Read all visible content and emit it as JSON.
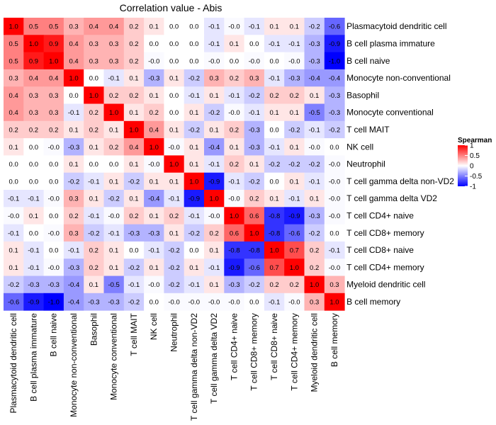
{
  "chart_data": {
    "type": "heatmap",
    "title": "Correlation value - Abis",
    "legend": {
      "title": "Spearman",
      "placement": "right",
      "ticks": [
        1,
        0.5,
        0,
        -0.5,
        -1
      ],
      "tick_labels": [
        "1",
        "0.5",
        "0",
        "-0.5",
        "-1"
      ],
      "colors": {
        "high": "#ff0000",
        "mid": "#ffffff",
        "low": "#0000ff"
      }
    },
    "labels": [
      "Plasmacytoid dendritic cell",
      "B cell plasma immature",
      "B cell naive",
      "Monocyte non-conventional",
      "Basophil",
      "Monocyte conventional",
      "T cell MAIT",
      "NK cell",
      "Neutrophil",
      "T cell gamma delta non-VD2",
      "T cell gamma delta VD2",
      "T cell CD4+ naive",
      "T cell CD8+ memory",
      "T cell CD8+ naive",
      "T cell CD4+ memory",
      "Myeloid dendritic cell",
      "B cell memory"
    ],
    "cell_labels": [
      [
        "1.0",
        "0.5",
        "0.5",
        "0.3",
        "0.4",
        "0.4",
        "0.2",
        "0.1",
        "0.0",
        "0.0",
        "-0.1",
        "-0.0",
        "-0.1",
        "0.1",
        "0.1",
        "-0.2",
        "-0.6"
      ],
      [
        "0.5",
        "1.0",
        "0.9",
        "0.4",
        "0.3",
        "0.3",
        "0.2",
        "0.0",
        "0.0",
        "0.0",
        "-0.1",
        "0.1",
        "0.0",
        "-0.1",
        "-0.1",
        "-0.3",
        "-0.9"
      ],
      [
        "0.5",
        "0.9",
        "1.0",
        "0.4",
        "0.3",
        "0.3",
        "0.2",
        "-0.0",
        "0.0",
        "0.0",
        "-0.0",
        "0.0",
        "-0.0",
        "0.0",
        "-0.0",
        "-0.3",
        "-1.0"
      ],
      [
        "0.3",
        "0.4",
        "0.4",
        "1.0",
        "0.0",
        "-0.1",
        "0.1",
        "-0.3",
        "0.1",
        "-0.2",
        "0.3",
        "0.2",
        "0.3",
        "-0.1",
        "-0.3",
        "-0.4",
        "-0.4"
      ],
      [
        "0.4",
        "0.3",
        "0.3",
        "0.0",
        "1.0",
        "0.2",
        "0.2",
        "0.1",
        "0.0",
        "-0.1",
        "0.1",
        "-0.1",
        "-0.2",
        "0.2",
        "0.2",
        "0.1",
        "-0.3"
      ],
      [
        "0.4",
        "0.3",
        "0.3",
        "-0.1",
        "0.2",
        "1.0",
        "0.1",
        "0.2",
        "0.0",
        "0.1",
        "-0.2",
        "-0.0",
        "-0.1",
        "0.1",
        "0.1",
        "-0.5",
        "-0.3"
      ],
      [
        "0.2",
        "0.2",
        "0.2",
        "0.1",
        "0.2",
        "0.1",
        "1.0",
        "0.4",
        "0.1",
        "-0.2",
        "0.1",
        "0.2",
        "-0.3",
        "0.0",
        "-0.2",
        "-0.1",
        "-0.2"
      ],
      [
        "0.1",
        "0.0",
        "-0.0",
        "-0.3",
        "0.1",
        "0.2",
        "0.4",
        "1.0",
        "-0.0",
        "0.1",
        "-0.4",
        "0.1",
        "-0.3",
        "-0.1",
        "0.1",
        "-0.0",
        "0.0"
      ],
      [
        "0.0",
        "0.0",
        "0.0",
        "0.1",
        "0.0",
        "0.0",
        "0.1",
        "-0.0",
        "1.0",
        "0.1",
        "-0.1",
        "0.2",
        "0.1",
        "-0.2",
        "-0.2",
        "-0.2",
        "-0.0"
      ],
      [
        "0.0",
        "0.0",
        "0.0",
        "-0.2",
        "-0.1",
        "0.1",
        "-0.2",
        "0.1",
        "0.1",
        "1.0",
        "-0.9",
        "-0.1",
        "-0.2",
        "0.0",
        "0.1",
        "-0.1",
        "-0.0"
      ],
      [
        "-0.1",
        "-0.1",
        "-0.0",
        "0.3",
        "0.1",
        "-0.2",
        "0.1",
        "-0.4",
        "-0.1",
        "-0.9",
        "1.0",
        "-0.0",
        "0.2",
        "0.1",
        "-0.1",
        "0.1",
        "-0.0"
      ],
      [
        "-0.0",
        "0.1",
        "0.0",
        "0.2",
        "-0.1",
        "-0.0",
        "0.2",
        "0.1",
        "0.2",
        "-0.1",
        "-0.0",
        "1.0",
        "0.6",
        "-0.8",
        "-0.9",
        "-0.3",
        "-0.0"
      ],
      [
        "-0.1",
        "0.0",
        "-0.0",
        "0.3",
        "-0.2",
        "-0.1",
        "-0.3",
        "-0.3",
        "0.1",
        "-0.2",
        "0.2",
        "0.6",
        "1.0",
        "-0.8",
        "-0.6",
        "-0.2",
        "0.0"
      ],
      [
        "0.1",
        "-0.1",
        "0.0",
        "-0.1",
        "0.2",
        "0.1",
        "0.0",
        "-0.1",
        "-0.2",
        "0.0",
        "0.1",
        "-0.8",
        "-0.8",
        "1.0",
        "0.7",
        "0.2",
        "-0.1"
      ],
      [
        "0.1",
        "-0.1",
        "-0.0",
        "-0.3",
        "0.2",
        "0.1",
        "-0.2",
        "0.1",
        "-0.2",
        "0.1",
        "-0.1",
        "-0.9",
        "-0.6",
        "0.7",
        "1.0",
        "0.2",
        "-0.0"
      ],
      [
        "-0.2",
        "-0.3",
        "-0.3",
        "-0.4",
        "0.1",
        "-0.5",
        "-0.1",
        "-0.0",
        "-0.2",
        "-0.1",
        "0.1",
        "-0.3",
        "-0.2",
        "0.2",
        "0.2",
        "1.0",
        "0.3"
      ],
      [
        "-0.6",
        "-0.9",
        "-1.0",
        "-0.4",
        "-0.3",
        "-0.3",
        "-0.2",
        "0.0",
        "-0.0",
        "-0.0",
        "-0.0",
        "-0.0",
        "0.0",
        "-0.1",
        "-0.0",
        "0.3",
        "1.0"
      ]
    ],
    "values": [
      [
        1.0,
        0.5,
        0.5,
        0.3,
        0.4,
        0.4,
        0.2,
        0.1,
        0.0,
        0.0,
        -0.1,
        -0.02,
        -0.1,
        0.1,
        0.1,
        -0.2,
        -0.6
      ],
      [
        0.5,
        1.0,
        0.9,
        0.4,
        0.3,
        0.3,
        0.2,
        0.0,
        0.0,
        0.0,
        -0.1,
        0.1,
        0.0,
        -0.1,
        -0.1,
        -0.3,
        -0.9
      ],
      [
        0.5,
        0.9,
        1.0,
        0.4,
        0.3,
        0.3,
        0.2,
        -0.02,
        0.0,
        0.0,
        -0.02,
        0.0,
        -0.02,
        0.0,
        -0.02,
        -0.3,
        -1.0
      ],
      [
        0.3,
        0.4,
        0.4,
        1.0,
        0.0,
        -0.1,
        0.1,
        -0.3,
        0.1,
        -0.2,
        0.3,
        0.2,
        0.3,
        -0.1,
        -0.3,
        -0.4,
        -0.4
      ],
      [
        0.4,
        0.3,
        0.3,
        0.0,
        1.0,
        0.2,
        0.2,
        0.1,
        0.0,
        -0.1,
        0.1,
        -0.1,
        -0.2,
        0.2,
        0.2,
        0.1,
        -0.3
      ],
      [
        0.4,
        0.3,
        0.3,
        -0.1,
        0.2,
        1.0,
        0.1,
        0.2,
        0.0,
        0.1,
        -0.2,
        -0.02,
        -0.1,
        0.1,
        0.1,
        -0.5,
        -0.3
      ],
      [
        0.2,
        0.2,
        0.2,
        0.1,
        0.2,
        0.1,
        1.0,
        0.4,
        0.1,
        -0.2,
        0.1,
        0.2,
        -0.3,
        0.0,
        -0.2,
        -0.1,
        -0.2
      ],
      [
        0.1,
        0.0,
        -0.02,
        -0.3,
        0.1,
        0.2,
        0.4,
        1.0,
        -0.02,
        0.1,
        -0.4,
        0.1,
        -0.3,
        -0.1,
        0.1,
        -0.02,
        0.0
      ],
      [
        0.0,
        0.0,
        0.0,
        0.1,
        0.0,
        0.0,
        0.1,
        -0.02,
        1.0,
        0.1,
        -0.1,
        0.2,
        0.1,
        -0.2,
        -0.2,
        -0.2,
        -0.02
      ],
      [
        0.0,
        0.0,
        0.0,
        -0.2,
        -0.1,
        0.1,
        -0.2,
        0.1,
        0.1,
        1.0,
        -0.9,
        -0.1,
        -0.2,
        0.0,
        0.1,
        -0.1,
        -0.02
      ],
      [
        -0.1,
        -0.1,
        -0.02,
        0.3,
        0.1,
        -0.2,
        0.1,
        -0.4,
        -0.1,
        -0.9,
        1.0,
        -0.02,
        0.2,
        0.1,
        -0.1,
        0.1,
        -0.02
      ],
      [
        -0.02,
        0.1,
        0.0,
        0.2,
        -0.1,
        -0.02,
        0.2,
        0.1,
        0.2,
        -0.1,
        -0.02,
        1.0,
        0.6,
        -0.8,
        -0.9,
        -0.3,
        -0.02
      ],
      [
        -0.1,
        0.0,
        -0.02,
        0.3,
        -0.2,
        -0.1,
        -0.3,
        -0.3,
        0.1,
        -0.2,
        0.2,
        0.6,
        1.0,
        -0.8,
        -0.6,
        -0.2,
        0.0
      ],
      [
        0.1,
        -0.1,
        0.0,
        -0.1,
        0.2,
        0.1,
        0.0,
        -0.1,
        -0.2,
        0.0,
        0.1,
        -0.8,
        -0.8,
        1.0,
        0.7,
        0.2,
        -0.1
      ],
      [
        0.1,
        -0.1,
        -0.02,
        -0.3,
        0.2,
        0.1,
        -0.2,
        0.1,
        -0.2,
        0.1,
        -0.1,
        -0.9,
        -0.6,
        0.7,
        1.0,
        0.2,
        -0.02
      ],
      [
        -0.2,
        -0.3,
        -0.3,
        -0.4,
        0.1,
        -0.5,
        -0.1,
        -0.02,
        -0.2,
        -0.1,
        0.1,
        -0.3,
        -0.2,
        0.2,
        0.2,
        1.0,
        0.3
      ],
      [
        -0.6,
        -0.9,
        -1.0,
        -0.4,
        -0.3,
        -0.3,
        -0.2,
        0.0,
        -0.02,
        -0.02,
        -0.02,
        -0.02,
        0.0,
        -0.1,
        -0.02,
        0.3,
        1.0
      ]
    ]
  }
}
